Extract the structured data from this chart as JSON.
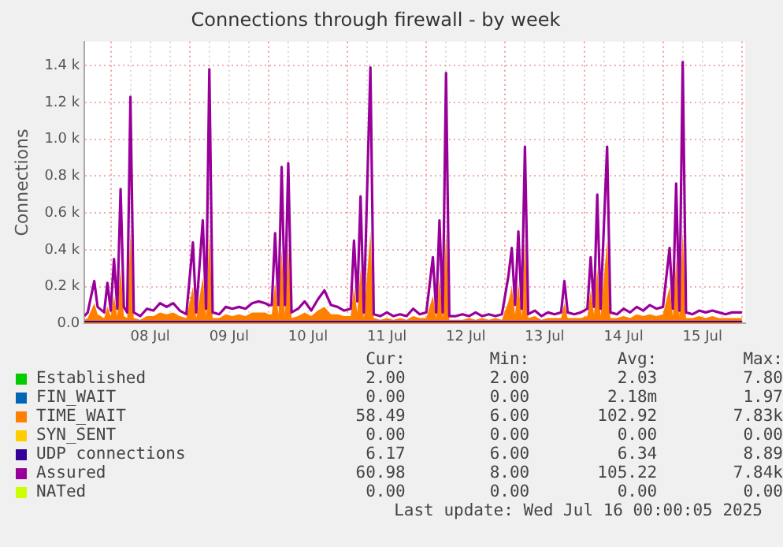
{
  "chart_data": {
    "type": "line",
    "title": "Connections through firewall - by week",
    "ylabel": "Connections",
    "x": [
      "2025-07-07T16:00",
      "2025-07-07T17:00",
      "2025-07-07T19:00",
      "2025-07-07T20:00",
      "2025-07-07T22:00",
      "2025-07-07T23:00",
      "2025-07-08T00:00",
      "2025-07-08T01:00",
      "2025-07-08T02:00",
      "2025-07-08T03:00",
      "2025-07-08T04:00",
      "2025-07-08T05:00",
      "2025-07-08T06:00",
      "2025-07-08T07:00",
      "2025-07-08T09:00",
      "2025-07-08T11:00",
      "2025-07-08T13:00",
      "2025-07-08T15:00",
      "2025-07-08T17:00",
      "2025-07-08T19:00",
      "2025-07-08T21:00",
      "2025-07-08T23:00",
      "2025-07-09T01:00",
      "2025-07-09T02:00",
      "2025-07-09T04:00",
      "2025-07-09T05:00",
      "2025-07-09T06:00",
      "2025-07-09T07:00",
      "2025-07-09T09:00",
      "2025-07-09T11:00",
      "2025-07-09T13:00",
      "2025-07-09T15:00",
      "2025-07-09T17:00",
      "2025-07-09T19:00",
      "2025-07-09T21:00",
      "2025-07-09T23:00",
      "2025-07-10T00:00",
      "2025-07-10T01:00",
      "2025-07-10T02:00",
      "2025-07-10T03:00",
      "2025-07-10T04:00",
      "2025-07-10T05:00",
      "2025-07-10T06:00",
      "2025-07-10T07:00",
      "2025-07-10T09:00",
      "2025-07-10T11:00",
      "2025-07-10T13:00",
      "2025-07-10T15:00",
      "2025-07-10T17:00",
      "2025-07-10T19:00",
      "2025-07-10T21:00",
      "2025-07-10T23:00",
      "2025-07-11T01:00",
      "2025-07-11T02:00",
      "2025-07-11T03:00",
      "2025-07-11T04:00",
      "2025-07-11T05:00",
      "2025-07-11T07:00",
      "2025-07-11T08:00",
      "2025-07-11T10:00",
      "2025-07-11T12:00",
      "2025-07-11T14:00",
      "2025-07-11T16:00",
      "2025-07-11T18:00",
      "2025-07-11T20:00",
      "2025-07-11T22:00",
      "2025-07-12T00:00",
      "2025-07-12T02:00",
      "2025-07-12T03:00",
      "2025-07-12T04:00",
      "2025-07-12T05:00",
      "2025-07-12T06:00",
      "2025-07-12T07:00",
      "2025-07-12T09:00",
      "2025-07-12T11:00",
      "2025-07-12T13:00",
      "2025-07-12T15:00",
      "2025-07-12T17:00",
      "2025-07-12T19:00",
      "2025-07-12T21:00",
      "2025-07-12T23:00",
      "2025-07-13T01:00",
      "2025-07-13T02:00",
      "2025-07-13T03:00",
      "2025-07-13T04:00",
      "2025-07-13T05:00",
      "2025-07-13T06:00",
      "2025-07-13T07:00",
      "2025-07-13T09:00",
      "2025-07-13T11:00",
      "2025-07-13T13:00",
      "2025-07-13T15:00",
      "2025-07-13T17:00",
      "2025-07-13T18:00",
      "2025-07-13T19:00",
      "2025-07-13T21:00",
      "2025-07-13T23:00",
      "2025-07-14T01:00",
      "2025-07-14T02:00",
      "2025-07-14T03:00",
      "2025-07-14T04:00",
      "2025-07-14T05:00",
      "2025-07-14T07:00",
      "2025-07-14T08:00",
      "2025-07-14T10:00",
      "2025-07-14T12:00",
      "2025-07-14T14:00",
      "2025-07-14T16:00",
      "2025-07-14T18:00",
      "2025-07-14T20:00",
      "2025-07-14T22:00",
      "2025-07-15T00:00",
      "2025-07-15T02:00",
      "2025-07-15T03:00",
      "2025-07-15T04:00",
      "2025-07-15T05:00",
      "2025-07-15T06:00",
      "2025-07-15T07:00",
      "2025-07-15T09:00",
      "2025-07-15T11:00",
      "2025-07-15T13:00",
      "2025-07-15T15:00",
      "2025-07-15T17:00",
      "2025-07-15T19:00",
      "2025-07-15T21:00",
      "2025-07-15T23:00",
      "2025-07-16T00:00"
    ],
    "series": [
      {
        "name": "Established",
        "color": "#00cc00",
        "values": [
          null,
          null,
          null,
          null,
          null,
          null,
          null,
          null,
          null,
          null,
          null,
          null,
          null,
          null,
          null,
          null,
          null,
          null,
          null,
          null,
          null,
          null,
          null,
          null,
          null,
          null,
          null,
          null,
          null,
          null,
          null,
          null,
          null,
          null,
          null,
          null,
          null,
          null,
          null,
          null,
          null,
          null,
          null,
          null,
          null,
          null,
          null,
          null,
          null,
          null,
          null,
          null,
          null,
          null,
          null,
          null,
          null,
          null,
          null,
          null,
          null,
          null,
          null,
          null,
          null,
          null,
          null,
          null,
          null,
          null,
          null,
          null,
          null,
          null,
          null,
          null,
          null,
          null,
          null,
          null,
          null,
          null,
          null,
          null,
          null,
          null,
          null,
          null,
          null,
          null,
          null,
          null,
          null,
          null,
          null,
          null,
          null,
          null,
          null,
          null,
          null,
          null,
          null,
          null,
          null,
          null,
          null,
          null,
          null,
          null,
          null,
          null,
          null,
          null,
          null,
          null,
          null,
          null,
          null,
          null,
          null,
          null,
          null,
          null,
          null,
          null,
          null
        ]
      },
      {
        "name": "FIN_WAIT",
        "color": "#0066b3",
        "values": [
          null,
          null,
          null,
          null,
          null,
          null,
          null,
          null,
          null,
          null,
          null,
          null,
          null,
          null,
          null,
          null,
          null,
          null,
          null,
          null,
          null,
          null,
          null,
          null,
          null,
          null,
          null,
          null,
          null,
          null,
          null,
          null,
          null,
          null,
          null,
          null,
          null,
          null,
          null,
          null,
          null,
          null,
          null,
          null,
          null,
          null,
          null,
          null,
          null,
          null,
          null,
          null,
          null,
          null,
          null,
          null,
          null,
          null,
          null,
          null,
          null,
          null,
          null,
          null,
          null,
          null,
          null,
          null,
          null,
          null,
          null,
          null,
          null,
          null,
          null,
          null,
          null,
          null,
          null,
          null,
          null,
          null,
          null,
          null,
          null,
          null,
          null,
          null,
          null,
          null,
          null,
          null,
          null,
          null,
          null,
          null,
          null,
          null,
          null,
          null,
          null,
          null,
          null,
          null,
          null,
          null,
          null,
          null,
          null,
          null,
          null,
          null,
          null,
          null,
          null,
          null,
          null,
          null,
          null,
          null,
          null,
          null,
          null,
          null,
          null,
          null,
          null
        ]
      },
      {
        "name": "TIME_WAIT",
        "color": "#ff8000",
        "type": "area",
        "values": [
          20,
          30,
          110,
          50,
          30,
          90,
          40,
          150,
          40,
          300,
          40,
          30,
          500,
          30,
          20,
          40,
          40,
          60,
          50,
          60,
          40,
          30,
          200,
          30,
          250,
          40,
          500,
          30,
          30,
          50,
          40,
          50,
          40,
          60,
          60,
          60,
          50,
          50,
          220,
          50,
          400,
          50,
          420,
          30,
          40,
          60,
          40,
          70,
          90,
          50,
          50,
          40,
          40,
          200,
          60,
          300,
          30,
          500,
          30,
          20,
          30,
          20,
          30,
          20,
          40,
          30,
          30,
          150,
          30,
          250,
          30,
          500,
          20,
          20,
          20,
          30,
          20,
          30,
          20,
          30,
          20,
          120,
          200,
          50,
          220,
          40,
          450,
          30,
          40,
          20,
          30,
          30,
          30,
          110,
          30,
          30,
          30,
          40,
          180,
          50,
          300,
          40,
          450,
          30,
          30,
          40,
          30,
          50,
          40,
          50,
          40,
          50,
          200,
          40,
          350,
          40,
          500,
          30,
          30,
          40,
          30,
          40,
          30,
          30,
          30,
          30,
          30
        ]
      },
      {
        "name": "SYN_SENT",
        "color": "#ffcc00",
        "values": [
          null,
          null,
          null,
          null,
          null,
          null,
          null,
          null,
          null,
          null,
          null,
          null,
          null,
          null,
          null,
          null,
          null,
          null,
          null,
          null,
          null,
          null,
          null,
          null,
          null,
          null,
          null,
          null,
          null,
          null,
          null,
          null,
          null,
          null,
          null,
          null,
          null,
          null,
          null,
          null,
          null,
          null,
          null,
          null,
          null,
          null,
          null,
          null,
          null,
          null,
          null,
          null,
          null,
          null,
          null,
          null,
          null,
          null,
          null,
          null,
          null,
          null,
          null,
          null,
          null,
          null,
          null,
          null,
          null,
          null,
          null,
          null,
          null,
          null,
          null,
          null,
          null,
          null,
          null,
          null,
          null,
          null,
          null,
          null,
          null,
          null,
          null,
          null,
          null,
          null,
          null,
          null,
          null,
          null,
          null,
          null,
          null,
          null,
          null,
          null,
          null,
          null,
          null,
          null,
          null,
          null,
          null,
          null,
          null,
          null,
          null,
          null,
          null,
          null,
          null,
          null,
          null,
          null,
          null,
          null,
          null,
          null,
          null,
          null,
          null,
          null,
          null
        ]
      },
      {
        "name": "UDP connections",
        "color": "#330099",
        "x": [
          "2025-07-07T16:00",
          "2025-07-16T00:00"
        ],
        "values": [
          10,
          10
        ]
      },
      {
        "name": "Assured",
        "color": "#990099",
        "values": [
          40,
          60,
          230,
          90,
          60,
          220,
          70,
          350,
          80,
          730,
          90,
          60,
          1230,
          60,
          40,
          80,
          70,
          110,
          90,
          110,
          70,
          50,
          440,
          60,
          560,
          80,
          1380,
          60,
          50,
          90,
          80,
          90,
          80,
          110,
          120,
          110,
          100,
          100,
          490,
          100,
          850,
          100,
          870,
          60,
          80,
          120,
          70,
          130,
          180,
          100,
          90,
          70,
          80,
          450,
          120,
          690,
          60,
          1390,
          50,
          40,
          60,
          40,
          50,
          40,
          80,
          50,
          60,
          360,
          60,
          560,
          60,
          1360,
          40,
          40,
          50,
          40,
          60,
          40,
          50,
          40,
          50,
          260,
          410,
          100,
          500,
          80,
          960,
          50,
          70,
          40,
          60,
          50,
          60,
          230,
          60,
          50,
          60,
          80,
          360,
          90,
          700,
          80,
          960,
          60,
          50,
          80,
          60,
          90,
          70,
          100,
          80,
          90,
          410,
          80,
          760,
          70,
          1420,
          60,
          50,
          70,
          60,
          70,
          60,
          50,
          60,
          60,
          60
        ]
      },
      {
        "name": "NATed",
        "color": "#ccff00",
        "values": [
          null,
          null,
          null,
          null,
          null,
          null,
          null,
          null,
          null,
          null,
          null,
          null,
          null,
          null,
          null,
          null,
          null,
          null,
          null,
          null,
          null,
          null,
          null,
          null,
          null,
          null,
          null,
          null,
          null,
          null,
          null,
          null,
          null,
          null,
          null,
          null,
          null,
          null,
          null,
          null,
          null,
          null,
          null,
          null,
          null,
          null,
          null,
          null,
          null,
          null,
          null,
          null,
          null,
          null,
          null,
          null,
          null,
          null,
          null,
          null,
          null,
          null,
          null,
          null,
          null,
          null,
          null,
          null,
          null,
          null,
          null,
          null,
          null,
          null,
          null,
          null,
          null,
          null,
          null,
          null,
          null,
          null,
          null,
          null,
          null,
          null,
          null,
          null,
          null,
          null,
          null,
          null,
          null,
          null,
          null,
          null,
          null,
          null,
          null,
          null,
          null,
          null,
          null,
          null,
          null,
          null,
          null,
          null,
          null,
          null,
          null,
          null,
          null,
          null,
          null,
          null,
          null,
          null,
          null,
          null,
          null,
          null,
          null,
          null,
          null,
          null,
          null
        ]
      }
    ],
    "xlim": [
      "2025-07-07T16:00",
      "2025-07-16T01:00"
    ],
    "xticks": [
      {
        "value": "2025-07-08T00:00",
        "label": null
      },
      {
        "value": "2025-07-08T06:00",
        "label": null
      },
      {
        "value": "2025-07-08T12:00",
        "label": "08 Jul"
      },
      {
        "value": "2025-07-08T18:00",
        "label": null
      },
      {
        "value": "2025-07-09T00:00",
        "label": null
      },
      {
        "value": "2025-07-09T06:00",
        "label": null
      },
      {
        "value": "2025-07-09T12:00",
        "label": "09 Jul"
      },
      {
        "value": "2025-07-09T18:00",
        "label": null
      },
      {
        "value": "2025-07-10T00:00",
        "label": null
      },
      {
        "value": "2025-07-10T06:00",
        "label": null
      },
      {
        "value": "2025-07-10T12:00",
        "label": "10 Jul"
      },
      {
        "value": "2025-07-10T18:00",
        "label": null
      },
      {
        "value": "2025-07-11T00:00",
        "label": null
      },
      {
        "value": "2025-07-11T06:00",
        "label": null
      },
      {
        "value": "2025-07-11T12:00",
        "label": "11 Jul"
      },
      {
        "value": "2025-07-11T18:00",
        "label": null
      },
      {
        "value": "2025-07-12T00:00",
        "label": null
      },
      {
        "value": "2025-07-12T06:00",
        "label": null
      },
      {
        "value": "2025-07-12T12:00",
        "label": "12 Jul"
      },
      {
        "value": "2025-07-12T18:00",
        "label": null
      },
      {
        "value": "2025-07-13T00:00",
        "label": null
      },
      {
        "value": "2025-07-13T06:00",
        "label": null
      },
      {
        "value": "2025-07-13T12:00",
        "label": "13 Jul"
      },
      {
        "value": "2025-07-13T18:00",
        "label": null
      },
      {
        "value": "2025-07-14T00:00",
        "label": null
      },
      {
        "value": "2025-07-14T06:00",
        "label": null
      },
      {
        "value": "2025-07-14T12:00",
        "label": "14 Jul"
      },
      {
        "value": "2025-07-14T18:00",
        "label": null
      },
      {
        "value": "2025-07-15T00:00",
        "label": null
      },
      {
        "value": "2025-07-15T06:00",
        "label": null
      },
      {
        "value": "2025-07-15T12:00",
        "label": "15 Jul"
      },
      {
        "value": "2025-07-15T18:00",
        "label": null
      },
      {
        "value": "2025-07-16T00:00",
        "label": null
      }
    ],
    "ylim": [
      0,
      1530
    ],
    "yticks": [
      {
        "value": 0,
        "label": "0.0"
      },
      {
        "value": 200,
        "label": "0.2 k"
      },
      {
        "value": 400,
        "label": "0.4 k"
      },
      {
        "value": 600,
        "label": "0.6 k"
      },
      {
        "value": 800,
        "label": "0.8 k"
      },
      {
        "value": 1000,
        "label": "1.0 k"
      },
      {
        "value": 1200,
        "label": "1.2 k"
      },
      {
        "value": 1400,
        "label": "1.4 k"
      }
    ],
    "grid": true,
    "legend": "bottom",
    "annotations": [
      "Cur:",
      "Min:",
      "Avg:",
      "Max:",
      "2.00",
      "2.00",
      "2.03",
      "7.80",
      "0.00",
      "0.00",
      "2.18m",
      "1.97",
      "58.49",
      "6.00",
      "102.92",
      "7.83k",
      "0.00",
      "0.00",
      "0.00",
      "0.00",
      "6.17",
      "6.00",
      "6.34",
      "8.89",
      "60.98",
      "8.00",
      "105.22",
      "7.84k",
      "0.00",
      "0.00",
      "0.00",
      "0.00",
      "Last update: Wed Jul 16 00:00:05 2025"
    ]
  }
}
